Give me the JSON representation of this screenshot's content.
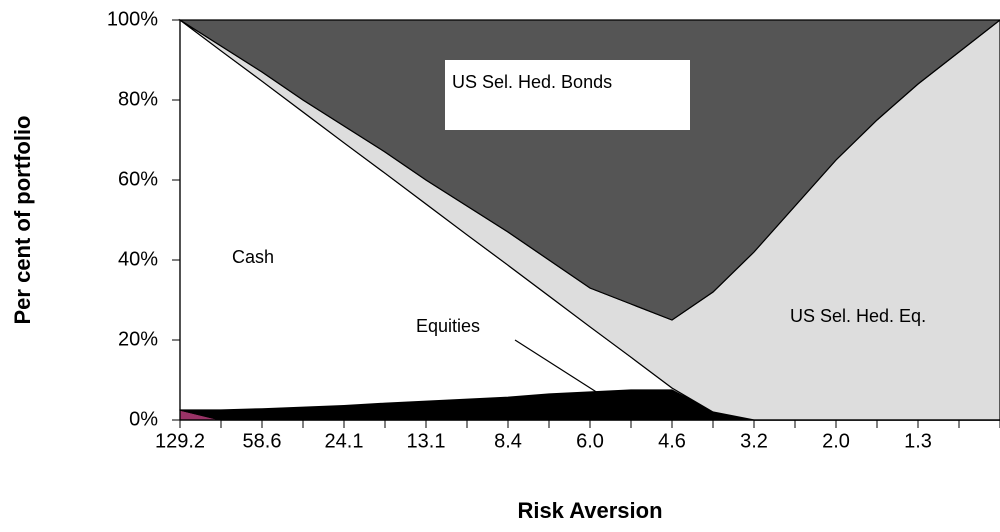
{
  "chart_data": {
    "type": "stacked_area",
    "x_label": "Risk Aversion",
    "y_label": "Per cent of portfolio",
    "categories": [
      "129.2",
      null,
      "58.6",
      null,
      "24.1",
      null,
      "13.1",
      null,
      "8.4",
      null,
      "6.0",
      null,
      "4.6",
      null,
      "3.2",
      null,
      "2.0",
      null,
      "1.3",
      null,
      null
    ],
    "series": [
      {
        "color": "#993366",
        "values": [
          2.5,
          0,
          0,
          0,
          0,
          0,
          0,
          0,
          0,
          0,
          0,
          0,
          0,
          0,
          0,
          0,
          0,
          0,
          0,
          0,
          0
        ]
      },
      {
        "name": "Equities",
        "color": "#000000",
        "values": [
          0,
          2.5,
          2.8,
          3.2,
          3.6,
          4.2,
          4.7,
          5.2,
          5.7,
          6.5,
          7,
          7.5,
          7.5,
          2,
          0,
          0,
          0,
          0,
          0,
          0,
          0
        ]
      },
      {
        "name": "Cash",
        "color": "#ffffff",
        "values": [
          97.5,
          89.8,
          81.9,
          73.8,
          65.7,
          57.5,
          49.3,
          41.1,
          33,
          24.5,
          16.3,
          8.2,
          0.5,
          0,
          0,
          0,
          0,
          0,
          0,
          0,
          0
        ]
      },
      {
        "name": "US Sel. Hed. Eq.",
        "color": "#dddddd",
        "values": [
          0,
          1.2,
          2.3,
          3,
          4.2,
          5.3,
          6,
          7.2,
          8.3,
          9,
          9.7,
          13.3,
          17,
          30,
          42,
          53.5,
          65,
          75,
          84,
          92,
          100
        ]
      },
      {
        "name": "US Sel. Hed. Bonds",
        "color": "#555555",
        "values": [
          0,
          6.5,
          13,
          20,
          26.5,
          33,
          40,
          46.5,
          53,
          60,
          67,
          71,
          75,
          68,
          58,
          46.5,
          35,
          25,
          16,
          8,
          0
        ]
      }
    ],
    "ylim": [
      0,
      100
    ],
    "yticks": [
      {
        "value": 0,
        "label": "0%"
      },
      {
        "value": 20,
        "label": "20%"
      },
      {
        "value": 40,
        "label": "40%"
      },
      {
        "value": 60,
        "label": "60%"
      },
      {
        "value": 80,
        "label": "80%"
      },
      {
        "value": 100,
        "label": "100%"
      }
    ]
  }
}
